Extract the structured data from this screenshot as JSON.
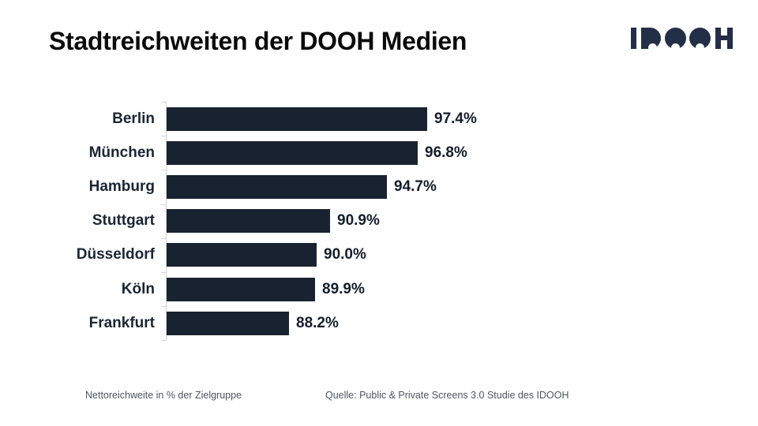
{
  "header": {
    "title": "Stadtreichweiten der DOOH Medien",
    "logo_text": "IDOOH"
  },
  "chart_data": {
    "type": "bar",
    "orientation": "horizontal",
    "title": "Stadtreichweiten der DOOH Medien",
    "categories": [
      "Berlin",
      "München",
      "Hamburg",
      "Stuttgart",
      "Düsseldorf",
      "Köln",
      "Frankfurt"
    ],
    "values": [
      97.4,
      96.8,
      94.7,
      90.9,
      90.0,
      89.9,
      88.2
    ],
    "value_labels": [
      "97.4%",
      "96.8%",
      "94.7%",
      "90.9%",
      "90.0%",
      "89.9%",
      "88.2%"
    ],
    "xlabel": "Nettoreichweite in % der Zielgruppe",
    "xlim": [
      80,
      100
    ],
    "grid": false,
    "legend": false
  },
  "footer": {
    "note": "Nettoreichweite in % der Zielgruppe",
    "source": "Quelle: Public & Private Screens 3.0 Studie des IDOOH"
  },
  "colors": {
    "bar": "#192230",
    "label": "#1b2534",
    "value": "#141d2b",
    "logo": "#232e47",
    "axis": "#d4d4d4",
    "footer_text": "#4f565e"
  }
}
